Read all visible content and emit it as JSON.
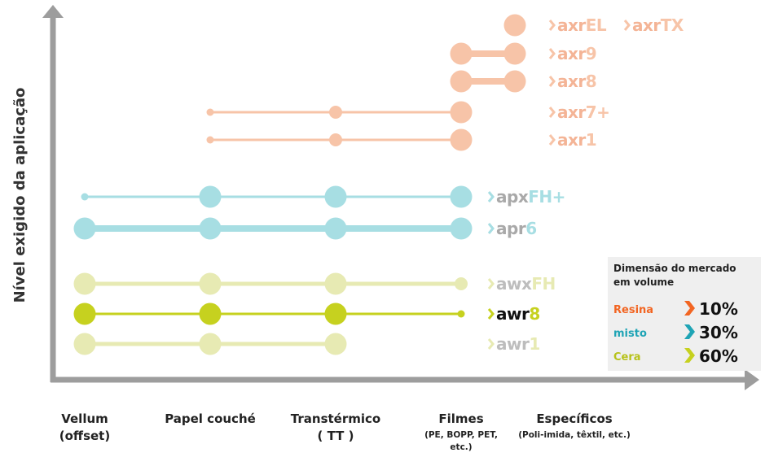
{
  "y_axis_label": "Nível exigido da aplicação",
  "categories": [
    {
      "label": "Vellum",
      "sub": [
        "(offset)"
      ]
    },
    {
      "label": "Papel couché",
      "sub": []
    },
    {
      "label": "Transtérmico",
      "sub": [
        "( TT )"
      ]
    },
    {
      "label": "Filmes",
      "sub": [
        "(PE, BOPP, PET,",
        "etc.)"
      ]
    },
    {
      "label": "Específicos",
      "sub": [
        "(Poli-imida, têxtil, etc.)"
      ]
    }
  ],
  "products": [
    {
      "names": [
        {
          "prefix": "axr",
          "suffix": "EL"
        },
        {
          "prefix": "axr",
          "suffix": "TX"
        }
      ],
      "group": "resina",
      "dots": [
        [
          4,
          "l"
        ]
      ],
      "line": "thick"
    },
    {
      "names": [
        {
          "prefix": "axr",
          "suffix": "9"
        }
      ],
      "group": "resina",
      "dots": [
        [
          3,
          "l"
        ],
        [
          4,
          "l"
        ]
      ],
      "line": "thick"
    },
    {
      "names": [
        {
          "prefix": "axr",
          "suffix": "8"
        }
      ],
      "group": "resina",
      "dots": [
        [
          3,
          "l"
        ],
        [
          4,
          "l"
        ]
      ],
      "line": "thick"
    },
    {
      "names": [
        {
          "prefix": "axr",
          "suffix": "7+"
        }
      ],
      "group": "resina",
      "dots": [
        [
          1,
          "s"
        ],
        [
          2,
          "m"
        ],
        [
          3,
          "l"
        ]
      ],
      "line": "thin"
    },
    {
      "names": [
        {
          "prefix": "axr",
          "suffix": "1"
        }
      ],
      "group": "resina",
      "dots": [
        [
          1,
          "s"
        ],
        [
          2,
          "m"
        ],
        [
          3,
          "l"
        ]
      ],
      "line": "thin"
    },
    {
      "names": [
        {
          "prefix": "apx",
          "suffix": "FH+"
        }
      ],
      "group": "misto",
      "dots": [
        [
          0,
          "s"
        ],
        [
          1,
          "l"
        ],
        [
          2,
          "l"
        ],
        [
          3,
          "l"
        ]
      ],
      "line": "thin"
    },
    {
      "names": [
        {
          "prefix": "apr",
          "suffix": "6"
        }
      ],
      "group": "misto",
      "dots": [
        [
          0,
          "l"
        ],
        [
          1,
          "l"
        ],
        [
          2,
          "l"
        ],
        [
          3,
          "l"
        ]
      ],
      "line": "thick"
    },
    {
      "names": [
        {
          "prefix": "awx",
          "suffix": "FH"
        }
      ],
      "group": "cera",
      "dots": [
        [
          0,
          "l"
        ],
        [
          1,
          "l"
        ],
        [
          2,
          "l"
        ],
        [
          3,
          "m"
        ]
      ],
      "line": "mid"
    },
    {
      "names": [
        {
          "prefix": "awr",
          "suffix": "8"
        }
      ],
      "group": "cera_dark",
      "dots": [
        [
          0,
          "l"
        ],
        [
          1,
          "l"
        ],
        [
          2,
          "l"
        ],
        [
          3,
          "s"
        ]
      ],
      "line": "thin"
    },
    {
      "names": [
        {
          "prefix": "awr",
          "suffix": "1"
        }
      ],
      "group": "cera",
      "dots": [
        [
          0,
          "l"
        ],
        [
          1,
          "l"
        ],
        [
          2,
          "l"
        ]
      ],
      "line": "mid"
    }
  ],
  "legend": {
    "title": [
      "Dimensão do mercado",
      "em volume"
    ],
    "rows": [
      {
        "name": "Resina",
        "value": "10%"
      },
      {
        "name": "misto",
        "value": "30%"
      },
      {
        "name": "Cera",
        "value": "60%"
      }
    ]
  }
}
